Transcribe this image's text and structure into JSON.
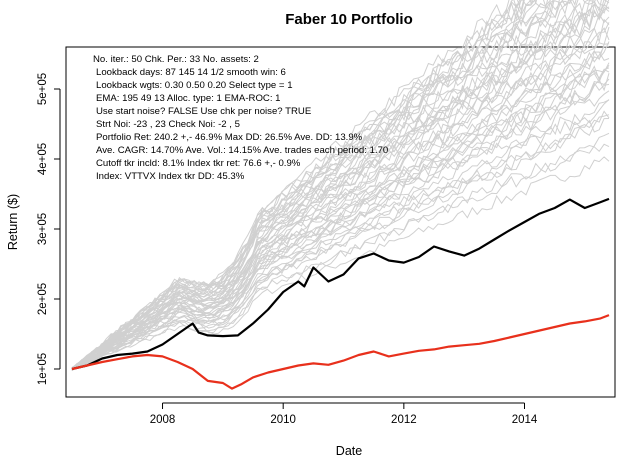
{
  "chart_data": {
    "type": "line",
    "title": "Faber 10 Portfolio",
    "xlabel": "Date",
    "ylabel": "Return ($)",
    "xlim": [
      2006.4,
      2015.5
    ],
    "ylim": [
      60000,
      560000
    ],
    "x_ticks": [
      {
        "value": 2008,
        "label": "2008"
      },
      {
        "value": 2010,
        "label": "2010"
      },
      {
        "value": 2012,
        "label": "2012"
      },
      {
        "value": 2014,
        "label": "2014"
      }
    ],
    "y_ticks": [
      {
        "value": 100000,
        "label": "1e+05"
      },
      {
        "value": 200000,
        "label": "2e+05"
      },
      {
        "value": 300000,
        "label": "3e+05"
      },
      {
        "value": 400000,
        "label": "4e+05"
      },
      {
        "value": 500000,
        "label": "5e+05"
      }
    ],
    "grid": false,
    "annotations": [
      "No. iter.:  50  Chk. Per.:  33 No. assets:   2",
      "Lookback days:  87 145  14  1/2 smooth win:   6",
      "Lookback wgts: 0.30 0.50 0.20  Select type =   1",
      "EMA:  195   49   13  Alloc. type:   1 EMA-ROC:   1",
      "Use start noise? FALSE Use chk per noise? TRUE",
      "Strt Noi: -23 ,  23  Check Noi:  -2 ,   5",
      "Portfolio Ret: 240.2 +,- 46.9%  Max DD: 26.5% Ave. DD: 13.9%",
      "Ave. CAGR: 14.70% Ave. Vol.: 14.15% Ave. trades each period: 1.70",
      "Cutoff tkr incld:  8.1%   Index tkr ret: 76.6 +,-  0.9%",
      "Index: VTTVX Index tkr DD: 45.3%"
    ],
    "series": [
      {
        "color": "#000000",
        "x": [
          2006.5,
          2006.75,
          2007.0,
          2007.25,
          2007.5,
          2007.75,
          2008.0,
          2008.25,
          2008.5,
          2008.6,
          2008.75,
          2009.0,
          2009.25,
          2009.5,
          2009.75,
          2010.0,
          2010.25,
          2010.35,
          2010.5,
          2010.75,
          2011.0,
          2011.25,
          2011.5,
          2011.75,
          2012.0,
          2012.25,
          2012.5,
          2012.75,
          2013.0,
          2013.25,
          2013.5,
          2013.75,
          2014.0,
          2014.25,
          2014.5,
          2014.75,
          2015.0,
          2015.25,
          2015.4
        ],
        "y": [
          100000,
          105000,
          115000,
          120000,
          122000,
          125000,
          135000,
          150000,
          165000,
          152000,
          148000,
          147000,
          148000,
          165000,
          185000,
          210000,
          225000,
          218000,
          245000,
          225000,
          235000,
          258000,
          265000,
          255000,
          252000,
          260000,
          275000,
          268000,
          262000,
          272000,
          285000,
          298000,
          310000,
          322000,
          330000,
          342000,
          330000,
          338000,
          343000
        ]
      },
      {
        "color": "#e8301c",
        "x": [
          2006.5,
          2006.75,
          2007.0,
          2007.25,
          2007.5,
          2007.75,
          2008.0,
          2008.25,
          2008.5,
          2008.75,
          2009.0,
          2009.15,
          2009.3,
          2009.5,
          2009.75,
          2010.0,
          2010.25,
          2010.5,
          2010.75,
          2011.0,
          2011.25,
          2011.5,
          2011.75,
          2012.0,
          2012.25,
          2012.5,
          2012.75,
          2013.0,
          2013.25,
          2013.5,
          2013.75,
          2014.0,
          2014.25,
          2014.5,
          2014.75,
          2015.0,
          2015.25,
          2015.4
        ],
        "y": [
          100000,
          105000,
          110000,
          114000,
          118000,
          120000,
          118000,
          110000,
          100000,
          83000,
          80000,
          72000,
          78000,
          88000,
          95000,
          100000,
          105000,
          108000,
          106000,
          112000,
          120000,
          125000,
          118000,
          122000,
          126000,
          128000,
          132000,
          134000,
          136000,
          140000,
          145000,
          150000,
          155000,
          160000,
          165000,
          168000,
          172000,
          177000
        ]
      }
    ]
  }
}
